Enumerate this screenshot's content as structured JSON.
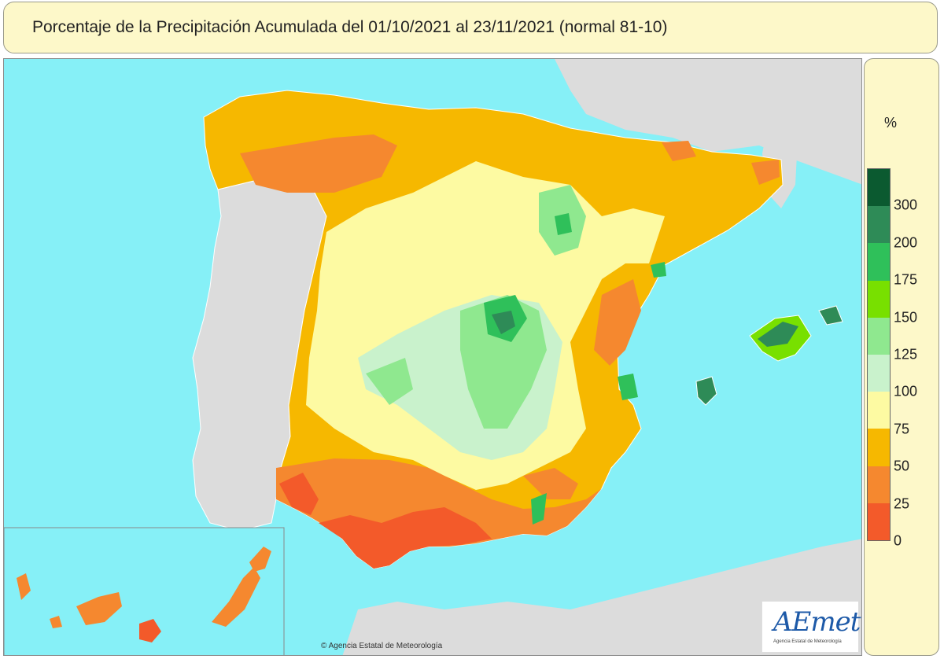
{
  "title": "Porcentaje de la Precipitación Acumulada del 01/10/2021 al 23/11/2021 (normal 81-10)",
  "legend": {
    "unit": "%",
    "ticks": [
      "300",
      "200",
      "175",
      "150",
      "125",
      "100",
      "75",
      "50",
      "25",
      "0"
    ],
    "colors_top_to_bottom": [
      "#0b5a30",
      "#2e8b57",
      "#2fc05a",
      "#78e000",
      "#8fe88f",
      "#c9f2cc",
      "#fdfaa2",
      "#f6b800",
      "#f5882f",
      "#f35a2a"
    ]
  },
  "colors": {
    "sea": "#86f0f7",
    "land_outside": "#dcdcdc",
    "borders": "#ffffff"
  },
  "copyright": "© Agencia Estatal de Meteorología",
  "logo": {
    "text": "AEmet",
    "subtitle": "Agencia Estatal de Meteorología"
  }
}
